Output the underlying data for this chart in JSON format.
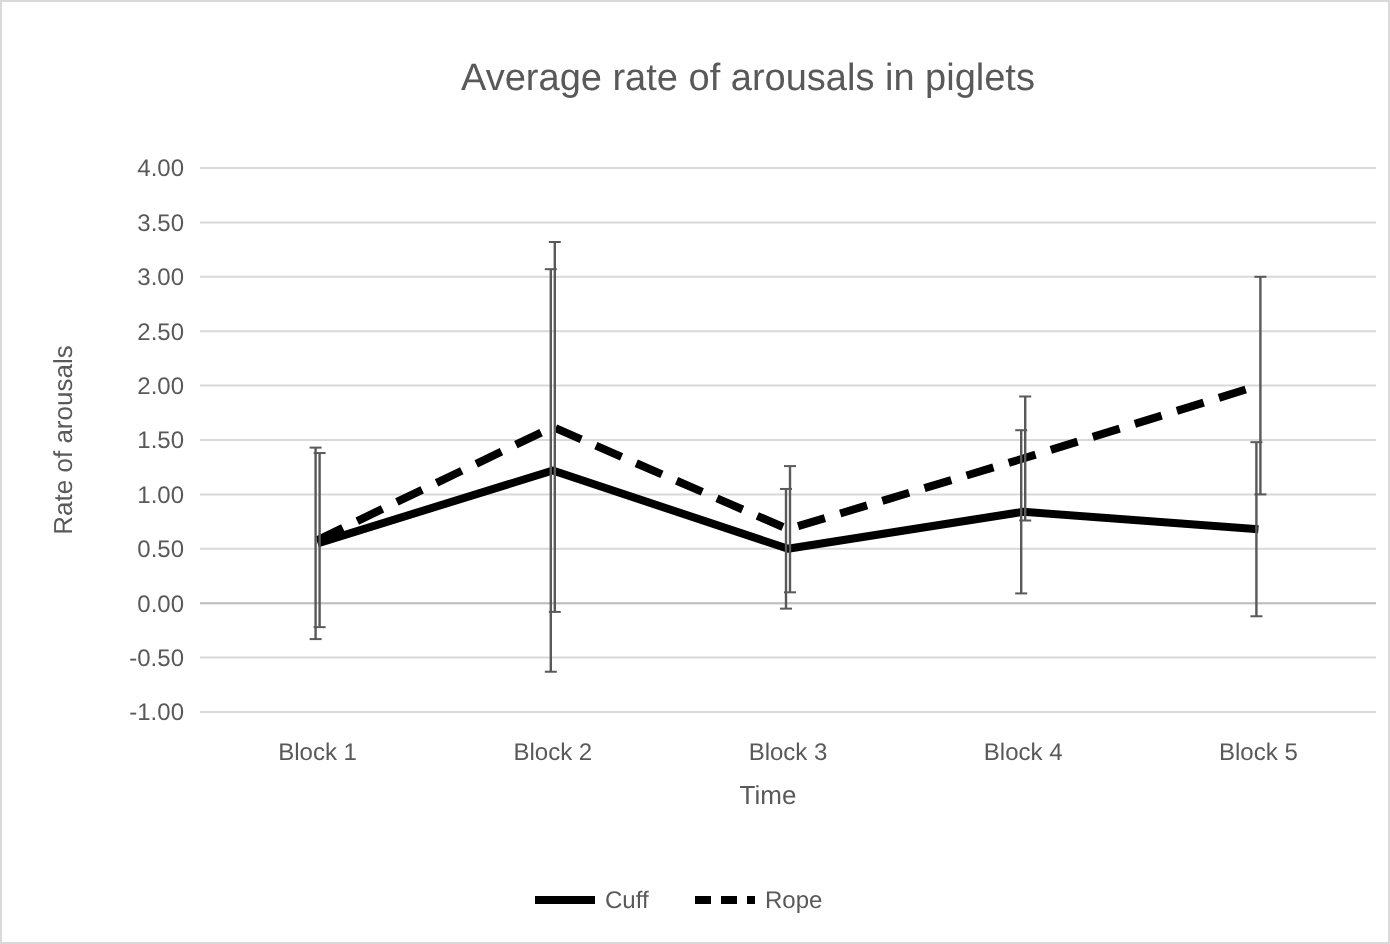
{
  "chart_data": {
    "type": "line",
    "title": "Average rate of arousals in piglets",
    "xlabel": "Time",
    "ylabel": "Rate of arousals",
    "categories": [
      "Block 1",
      "Block 2",
      "Block 3",
      "Block 4",
      "Block 5"
    ],
    "series": [
      {
        "name": "Cuff",
        "color": "#000000",
        "line_style": "solid",
        "values": [
          0.55,
          1.22,
          0.5,
          0.84,
          0.68
        ],
        "errors": [
          0.88,
          1.85,
          0.55,
          0.75,
          0.8
        ]
      },
      {
        "name": "Rope",
        "color": "#000000",
        "line_style": "dashed",
        "values": [
          0.58,
          1.62,
          0.68,
          1.33,
          2.0
        ],
        "errors": [
          0.8,
          1.7,
          0.58,
          0.57,
          1.0
        ]
      }
    ],
    "ylim": [
      -1,
      4
    ],
    "yticks": [
      {
        "value": -1,
        "label": "-1.00"
      },
      {
        "value": -0.5,
        "label": "-0.50"
      },
      {
        "value": 0,
        "label": "0.00"
      },
      {
        "value": 0.5,
        "label": "0.50"
      },
      {
        "value": 1,
        "label": "1.00"
      },
      {
        "value": 1.5,
        "label": "1.50"
      },
      {
        "value": 2,
        "label": "2.00"
      },
      {
        "value": 2.5,
        "label": "2.50"
      },
      {
        "value": 3,
        "label": "3.00"
      },
      {
        "value": 3.5,
        "label": "3.50"
      },
      {
        "value": 4,
        "label": "4.00"
      }
    ],
    "grid": "y",
    "legend": "bottom",
    "marker": "none"
  }
}
